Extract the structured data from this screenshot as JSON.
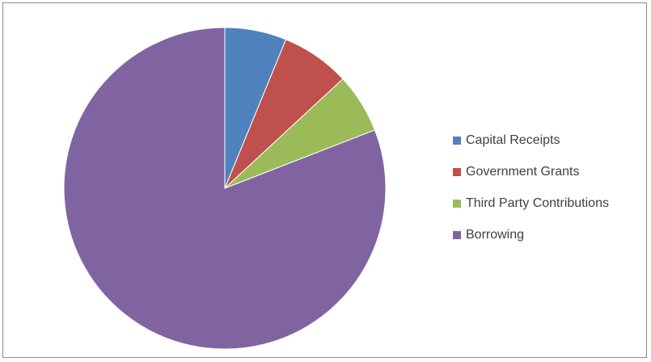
{
  "chart_data": {
    "type": "pie",
    "title": "",
    "slices": [
      {
        "label": "Capital Receipts",
        "value": 6.2,
        "color": "#4F81BD"
      },
      {
        "label": "Government Grants",
        "value": 6.9,
        "color": "#C0504D"
      },
      {
        "label": "Third Party Contributions",
        "value": 6.0,
        "color": "#9BBB59"
      },
      {
        "label": "Borrowing",
        "value": 80.9,
        "color": "#8064A2"
      }
    ],
    "start_angle": "12 o'clock",
    "direction": "clockwise",
    "legend": {
      "position": "right",
      "items": [
        "Capital Receipts",
        "Government Grants",
        "Third Party Contributions",
        "Borrowing"
      ]
    }
  }
}
